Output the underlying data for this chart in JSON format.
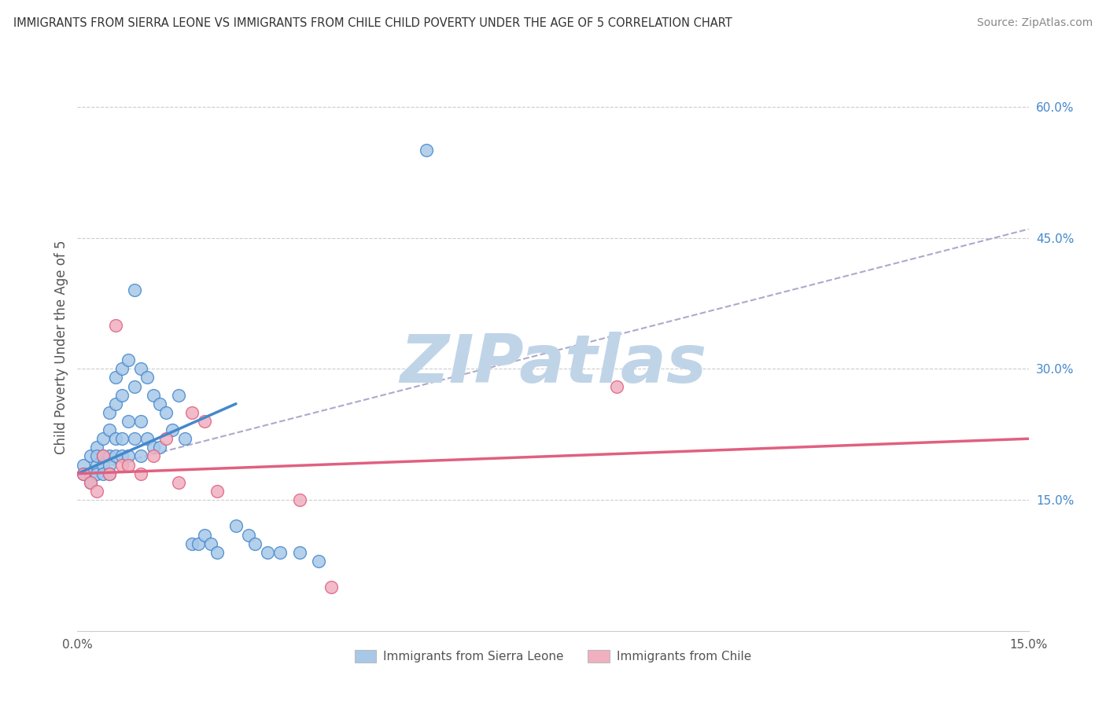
{
  "title": "IMMIGRANTS FROM SIERRA LEONE VS IMMIGRANTS FROM CHILE CHILD POVERTY UNDER THE AGE OF 5 CORRELATION CHART",
  "source": "Source: ZipAtlas.com",
  "ylabel": "Child Poverty Under the Age of 5",
  "xlim": [
    0.0,
    0.15
  ],
  "ylim": [
    0.0,
    0.65
  ],
  "color_blue": "#a8c8e8",
  "color_pink": "#f0b0c0",
  "color_blue_line": "#4488cc",
  "color_pink_line": "#e06080",
  "color_dashed": "#aaaacc",
  "watermark": "ZIPatlas",
  "watermark_color": "#c0d4e8",
  "legend_label_blue": "Immigrants from Sierra Leone",
  "legend_label_pink": "Immigrants from Chile",
  "blue_x": [
    0.001,
    0.001,
    0.002,
    0.002,
    0.002,
    0.003,
    0.003,
    0.003,
    0.003,
    0.004,
    0.004,
    0.004,
    0.004,
    0.005,
    0.005,
    0.005,
    0.005,
    0.005,
    0.006,
    0.006,
    0.006,
    0.006,
    0.007,
    0.007,
    0.007,
    0.007,
    0.008,
    0.008,
    0.008,
    0.009,
    0.009,
    0.009,
    0.01,
    0.01,
    0.01,
    0.011,
    0.011,
    0.012,
    0.012,
    0.013,
    0.013,
    0.014,
    0.015,
    0.016,
    0.017,
    0.018,
    0.019,
    0.02,
    0.021,
    0.022,
    0.025,
    0.027,
    0.028,
    0.03,
    0.032,
    0.035,
    0.038,
    0.055
  ],
  "blue_y": [
    0.19,
    0.18,
    0.2,
    0.18,
    0.17,
    0.19,
    0.21,
    0.2,
    0.18,
    0.22,
    0.2,
    0.19,
    0.18,
    0.25,
    0.23,
    0.2,
    0.19,
    0.18,
    0.29,
    0.26,
    0.22,
    0.2,
    0.3,
    0.27,
    0.22,
    0.2,
    0.31,
    0.24,
    0.2,
    0.39,
    0.28,
    0.22,
    0.3,
    0.24,
    0.2,
    0.29,
    0.22,
    0.27,
    0.21,
    0.26,
    0.21,
    0.25,
    0.23,
    0.27,
    0.22,
    0.1,
    0.1,
    0.11,
    0.1,
    0.09,
    0.12,
    0.11,
    0.1,
    0.09,
    0.09,
    0.09,
    0.08,
    0.55
  ],
  "pink_x": [
    0.001,
    0.002,
    0.003,
    0.004,
    0.005,
    0.006,
    0.007,
    0.008,
    0.01,
    0.012,
    0.014,
    0.016,
    0.018,
    0.02,
    0.022,
    0.035,
    0.04,
    0.085
  ],
  "pink_y": [
    0.18,
    0.17,
    0.16,
    0.2,
    0.18,
    0.35,
    0.19,
    0.19,
    0.18,
    0.2,
    0.22,
    0.17,
    0.25,
    0.24,
    0.16,
    0.15,
    0.05,
    0.28
  ],
  "blue_line_x": [
    0.0,
    0.025
  ],
  "blue_line_y": [
    0.18,
    0.26
  ],
  "pink_line_x": [
    0.0,
    0.15
  ],
  "pink_line_y": [
    0.18,
    0.22
  ],
  "dashed_line_x": [
    0.0,
    0.15
  ],
  "dashed_line_y": [
    0.18,
    0.46
  ]
}
